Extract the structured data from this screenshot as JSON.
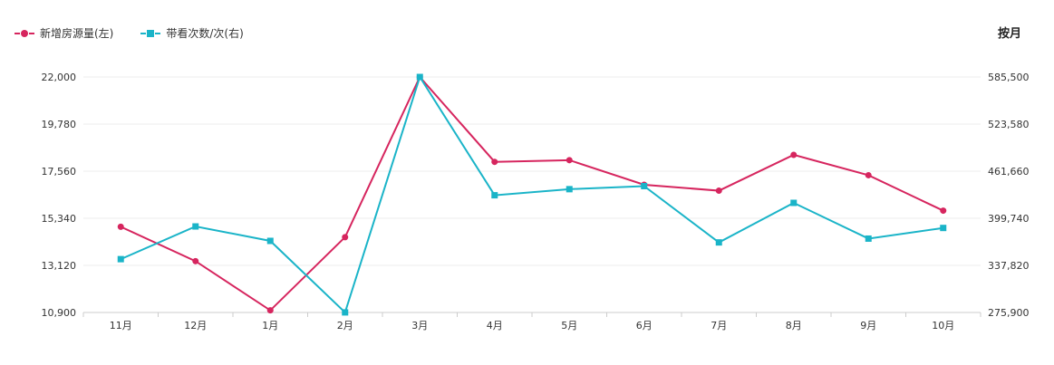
{
  "legend": {
    "series1": "新增房源量(左)",
    "series2": "带看次数/次(右)"
  },
  "corner_label": "按月",
  "colors": {
    "series1": "#d6255e",
    "series2": "#1ab4c8"
  },
  "chart_data": {
    "type": "line",
    "categories": [
      "11月",
      "12月",
      "1月",
      "2月",
      "3月",
      "4月",
      "5月",
      "6月",
      "7月",
      "8月",
      "9月",
      "10月"
    ],
    "series": [
      {
        "name": "新增房源量(左)",
        "axis": "left",
        "marker": "circle",
        "values": [
          14940,
          13320,
          11000,
          14450,
          22000,
          18000,
          18080,
          16920,
          16640,
          18330,
          17370,
          15700
        ]
      },
      {
        "name": "带看次数/次(右)",
        "axis": "right",
        "marker": "square",
        "values": [
          346000,
          389000,
          370000,
          276000,
          585500,
          430000,
          438000,
          442000,
          368000,
          420000,
          373000,
          387000
        ]
      }
    ],
    "y_left": {
      "ticks": [
        "22,000",
        "19,780",
        "17,560",
        "15,340",
        "13,120",
        "10,900"
      ],
      "min": 10900,
      "max": 22000
    },
    "y_right": {
      "ticks": [
        "585,500",
        "523,580",
        "461,660",
        "399,740",
        "337,820",
        "275,900"
      ],
      "min": 275900,
      "max": 585500
    },
    "grid": true,
    "legend_position": "top-left"
  }
}
